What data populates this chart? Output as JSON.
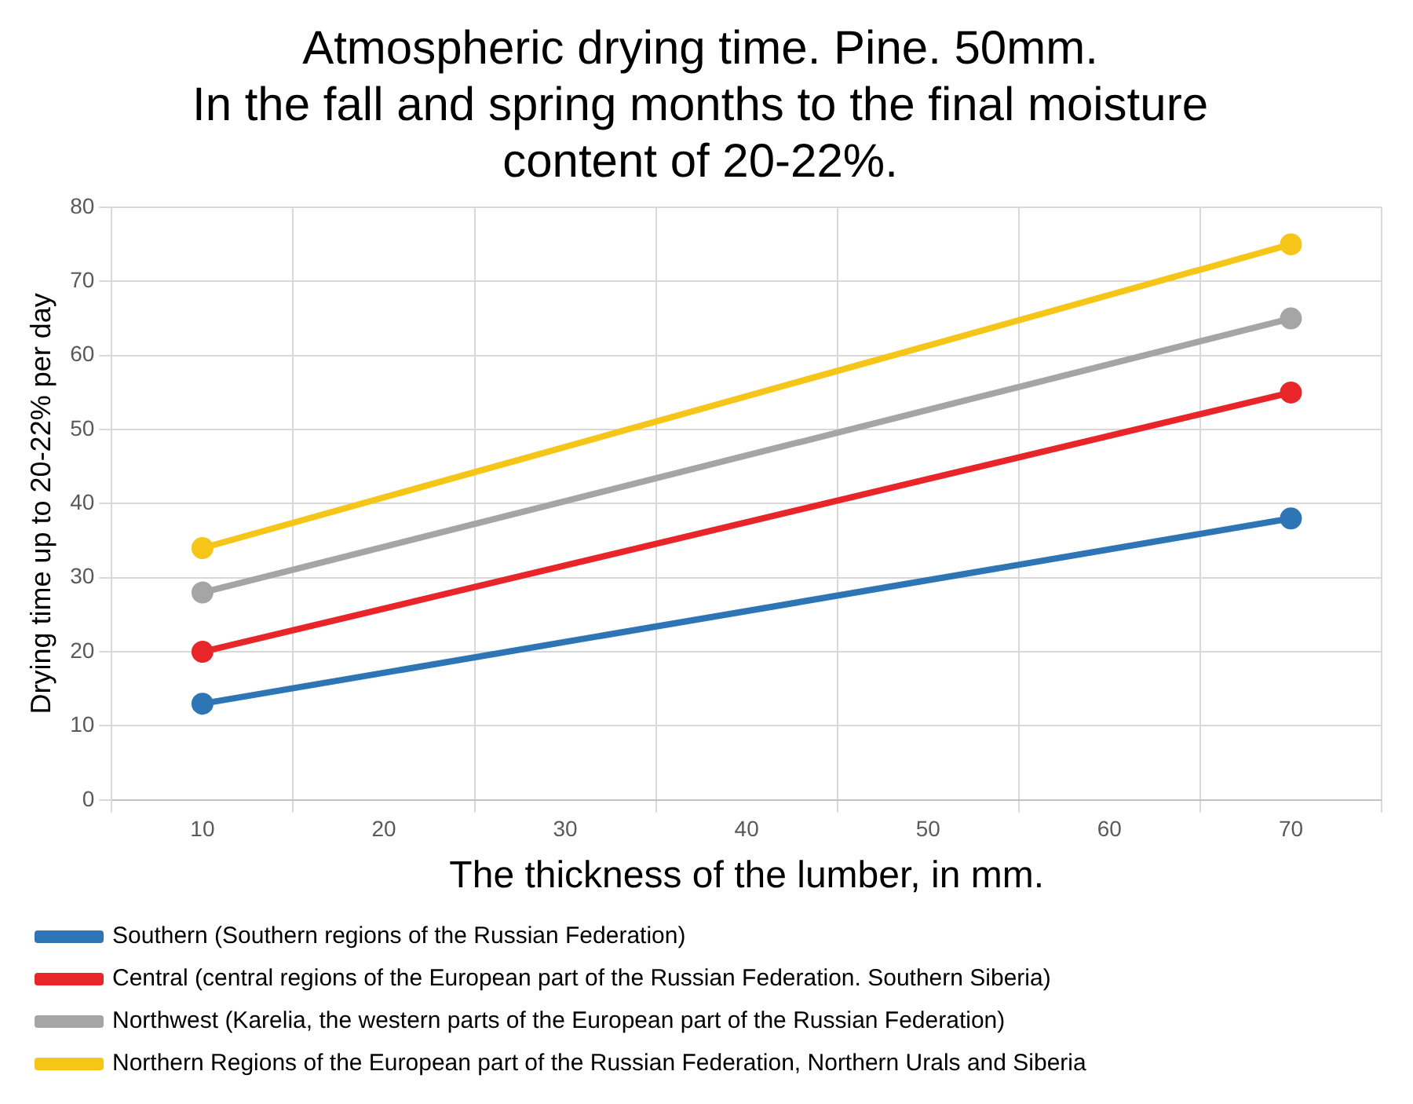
{
  "chart_data": {
    "type": "line",
    "title": [
      "Atmospheric drying time. Pine. 50mm.",
      "In the fall and spring months to the final moisture",
      "content of 20-22%."
    ],
    "xlabel": "The thickness of the lumber, in mm.",
    "ylabel": "Drying time up to 20-22% per day",
    "categories": [
      "10",
      "20",
      "30",
      "40",
      "50",
      "60",
      "70"
    ],
    "ylim": [
      0,
      80
    ],
    "yticks": [
      0,
      10,
      20,
      30,
      40,
      50,
      60,
      70,
      80
    ],
    "grid": true,
    "legend": "bottom",
    "marker": "circle",
    "series": [
      {
        "name": "Southern (Southern regions of the Russian Federation)",
        "color": "#2e75b6",
        "values": [
          13,
          null,
          null,
          null,
          null,
          null,
          38
        ]
      },
      {
        "name": "Central (central regions of the European part of the Russian Federation. Southern Siberia)",
        "color": "#e8262a",
        "values": [
          20,
          null,
          null,
          null,
          null,
          null,
          55
        ]
      },
      {
        "name": "Northwest (Karelia, the western parts of the European part of the Russian Federation)",
        "color": "#a5a5a5",
        "values": [
          28,
          null,
          null,
          null,
          null,
          null,
          65
        ]
      },
      {
        "name": "Northern Regions of the European part of the Russian Federation, Northern Urals and Siberia",
        "color": "#f5c518",
        "values": [
          34,
          null,
          null,
          null,
          null,
          null,
          75
        ]
      }
    ]
  }
}
